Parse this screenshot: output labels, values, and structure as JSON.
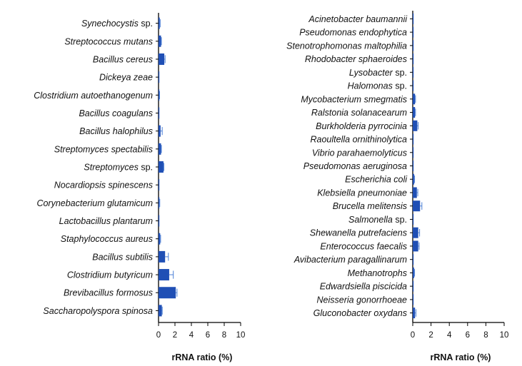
{
  "colors": {
    "bar": "#1f4fb5",
    "error": "#4a7fd6",
    "axis": "#000000"
  },
  "chart_data": [
    {
      "type": "bar",
      "orientation": "horizontal",
      "xlabel": "rRNA ratio (%)",
      "xlim": [
        0,
        10
      ],
      "xticks": [
        "0",
        "2",
        "4",
        "6",
        "8",
        "10"
      ],
      "categories": [
        {
          "label": "Synechocystis",
          "suffix": " sp.",
          "value": 0.15,
          "error": 0.05
        },
        {
          "label": "Streptococcus mutans",
          "suffix": "",
          "value": 0.3,
          "error": 0.05
        },
        {
          "label": "Bacillus cereus",
          "suffix": "",
          "value": 0.7,
          "error": 0.1
        },
        {
          "label": "Dickeya zeae",
          "suffix": "",
          "value": 0.05,
          "error": 0.0
        },
        {
          "label": "Clostridium autoethanogenum",
          "suffix": "",
          "value": 0.1,
          "error": 0.03
        },
        {
          "label": "Bacillus coagulans",
          "suffix": "",
          "value": 0.05,
          "error": 0.0
        },
        {
          "label": "Bacillus halophilus",
          "suffix": "",
          "value": 0.25,
          "error": 0.2
        },
        {
          "label": "Streptomyces spectabilis",
          "suffix": "",
          "value": 0.3,
          "error": 0.05
        },
        {
          "label": "Streptomyces",
          "suffix": " sp.",
          "value": 0.6,
          "error": 0.05
        },
        {
          "label": "Nocardiopsis spinescens",
          "suffix": "",
          "value": 0.05,
          "error": 0.0
        },
        {
          "label": "Corynebacterium glutamicum",
          "suffix": "",
          "value": 0.1,
          "error": 0.05
        },
        {
          "label": "Lactobacillus plantarum",
          "suffix": "",
          "value": 0.05,
          "error": 0.0
        },
        {
          "label": "Staphylococcus aureus",
          "suffix": "",
          "value": 0.2,
          "error": 0.05
        },
        {
          "label": "Bacillus subtilis",
          "suffix": "",
          "value": 0.8,
          "error": 0.4
        },
        {
          "label": "Clostridium butyricum",
          "suffix": "",
          "value": 1.3,
          "error": 0.5
        },
        {
          "label": "Brevibacillus formosus",
          "suffix": "",
          "value": 2.1,
          "error": 0.15
        },
        {
          "label": "Saccharopolyspora spinosa",
          "suffix": "",
          "value": 0.4,
          "error": 0.05
        }
      ]
    },
    {
      "type": "bar",
      "orientation": "horizontal",
      "xlabel": "rRNA ratio (%)",
      "xlim": [
        0,
        10
      ],
      "xticks": [
        "0",
        "2",
        "4",
        "6",
        "8",
        "10"
      ],
      "categories": [
        {
          "label": "Acinetobacter baumannii",
          "suffix": "",
          "value": 0.05,
          "error": 0.0
        },
        {
          "label": "Pseudomonas endophytica",
          "suffix": "",
          "value": 0.05,
          "error": 0.0
        },
        {
          "label": "Stenotrophomonas maltophilia",
          "suffix": "",
          "value": 0.05,
          "error": 0.0
        },
        {
          "label": "Rhodobacter sphaeroides",
          "suffix": "",
          "value": 0.05,
          "error": 0.0
        },
        {
          "label": "Lysobacter",
          "suffix": " sp.",
          "value": 0.05,
          "error": 0.0
        },
        {
          "label": "Halomonas",
          "suffix": " sp.",
          "value": 0.05,
          "error": 0.0
        },
        {
          "label": "Mycobacterium smegmatis",
          "suffix": "",
          "value": 0.25,
          "error": 0.05
        },
        {
          "label": "Ralstonia solanacearum",
          "suffix": "",
          "value": 0.25,
          "error": 0.05
        },
        {
          "label": "Burkholderia pyrrocinia",
          "suffix": "",
          "value": 0.5,
          "error": 0.1
        },
        {
          "label": "Raoultella ornithinolytica",
          "suffix": "",
          "value": 0.05,
          "error": 0.0
        },
        {
          "label": "Vibrio parahaemolyticus",
          "suffix": "",
          "value": 0.05,
          "error": 0.0
        },
        {
          "label": "Pseudomonas aeruginosa",
          "suffix": "",
          "value": 0.05,
          "error": 0.0
        },
        {
          "label": "Escherichia coli",
          "suffix": "",
          "value": 0.15,
          "error": 0.05
        },
        {
          "label": "Klebsiella pneumoniae",
          "suffix": "",
          "value": 0.45,
          "error": 0.1
        },
        {
          "label": "Brucella melitensis",
          "suffix": "",
          "value": 0.8,
          "error": 0.2
        },
        {
          "label": "Salmonella",
          "suffix": " sp.",
          "value": 0.05,
          "error": 0.0
        },
        {
          "label": "Shewanella putrefaciens",
          "suffix": "",
          "value": 0.6,
          "error": 0.15
        },
        {
          "label": "Enterococcus faecalis",
          "suffix": "",
          "value": 0.6,
          "error": 0.1
        },
        {
          "label": "Avibacterium paragallinarum",
          "suffix": "",
          "value": 0.05,
          "error": 0.0
        },
        {
          "label": "Methanotrophs",
          "suffix": "",
          "value": 0.15,
          "error": 0.05
        },
        {
          "label": "Edwardsiella piscicida",
          "suffix": "",
          "value": 0.05,
          "error": 0.0
        },
        {
          "label": "Neisseria gonorrhoeae",
          "suffix": "",
          "value": 0.05,
          "error": 0.0
        },
        {
          "label": "Gluconobacter oxydans",
          "suffix": "",
          "value": 0.25,
          "error": 0.1
        }
      ]
    }
  ]
}
